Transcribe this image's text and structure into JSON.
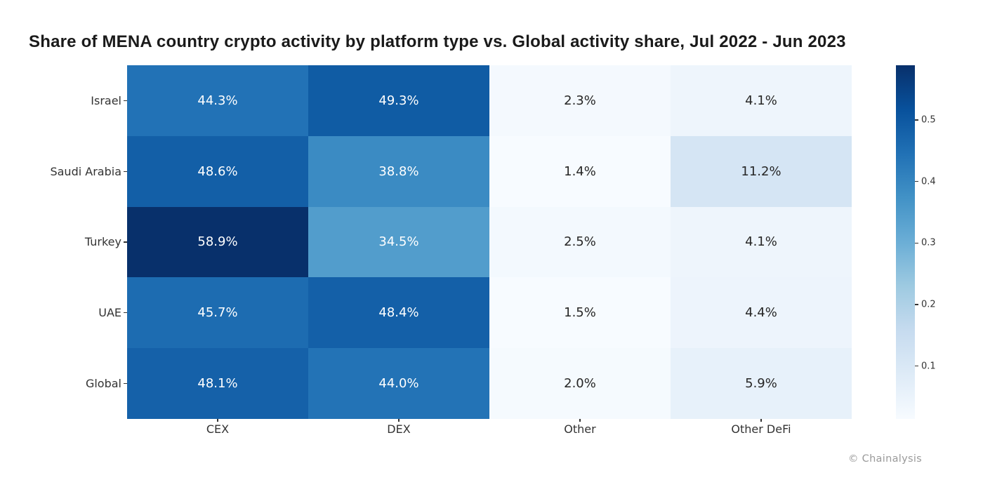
{
  "title": "Share of MENA country crypto activity by platform type vs. Global activity share, Jul 2022 - Jun 2023",
  "attribution": "© Chainalysis",
  "chart_data": {
    "type": "heatmap",
    "title": "Share of MENA country crypto activity by platform type vs. Global activity share, Jul 2022 - Jun 2023",
    "rows": [
      "Israel",
      "Saudi Arabia",
      "Turkey",
      "UAE",
      "Global"
    ],
    "columns": [
      "CEX",
      "DEX",
      "Other",
      "Other DeFi"
    ],
    "values_percent": [
      [
        44.3,
        49.3,
        2.3,
        4.1
      ],
      [
        48.6,
        38.8,
        1.4,
        11.2
      ],
      [
        58.9,
        34.5,
        2.5,
        4.1
      ],
      [
        45.7,
        48.4,
        1.5,
        4.4
      ],
      [
        48.1,
        44.0,
        2.0,
        5.9
      ]
    ],
    "cell_labels": [
      [
        "44.3%",
        "49.3%",
        "2.3%",
        "4.1%"
      ],
      [
        "48.6%",
        "38.8%",
        "1.4%",
        "11.2%"
      ],
      [
        "58.9%",
        "34.5%",
        "2.5%",
        "4.1%"
      ],
      [
        "45.7%",
        "48.4%",
        "1.5%",
        "4.4%"
      ],
      [
        "48.1%",
        "44.0%",
        "2.0%",
        "5.9%"
      ]
    ],
    "colormap": "Blues",
    "colormap_anchors": [
      "#f7fbff",
      "#deebf7",
      "#c6dbef",
      "#9ecae1",
      "#6baed6",
      "#4292c6",
      "#2171b5",
      "#08519c",
      "#08306b"
    ],
    "vmin": 0.014,
    "vmax": 0.589,
    "colorbar_position": "right",
    "colorbar_ticks": [
      {
        "label": "0.5",
        "value": 0.5
      },
      {
        "label": "0.4",
        "value": 0.4
      },
      {
        "label": "0.3",
        "value": 0.3
      },
      {
        "label": "0.2",
        "value": 0.2
      },
      {
        "label": "0.1",
        "value": 0.1
      }
    ],
    "annotation_colors": {
      "light_text": "#ffffff",
      "dark_text": "#262626"
    },
    "axis_label_color": "#333333",
    "grid": false
  }
}
